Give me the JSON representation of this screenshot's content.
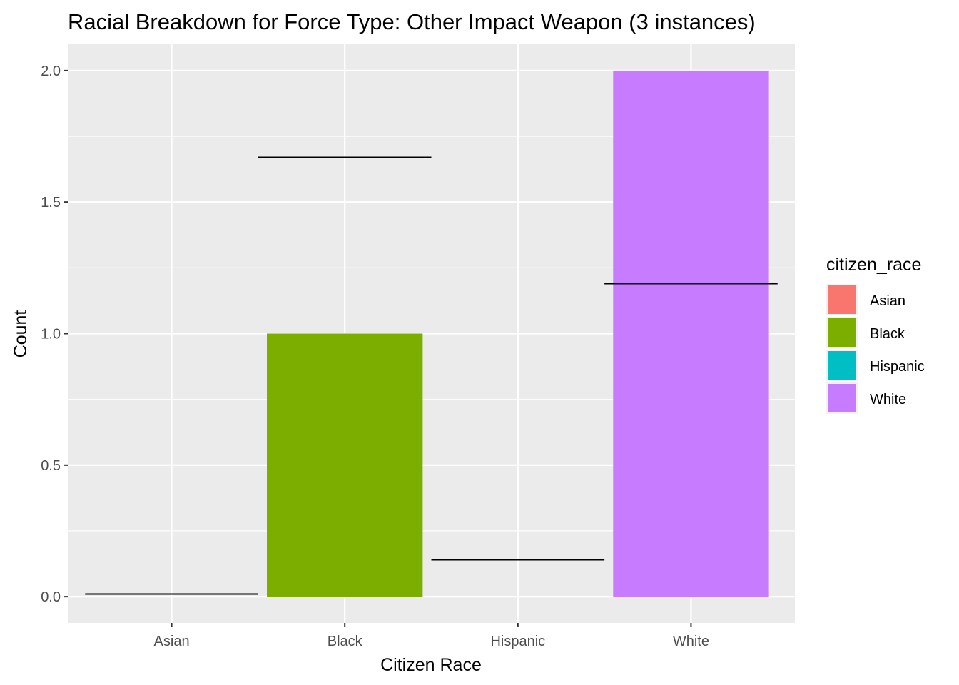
{
  "chart_data": {
    "type": "bar",
    "title": "Racial Breakdown for Force Type: Other Impact Weapon (3 instances)",
    "xlabel": "Citizen Race",
    "ylabel": "Count",
    "categories": [
      "Asian",
      "Black",
      "Hispanic",
      "White"
    ],
    "values": [
      0,
      1,
      0,
      2
    ],
    "colors": [
      "#F8766D",
      "#7CAE00",
      "#00BFC4",
      "#C77CFF"
    ],
    "reference_lines": [
      0.01,
      1.67,
      0.14,
      1.19
    ],
    "ylim": [
      -0.1,
      2.1
    ],
    "yticks": [
      0.0,
      0.5,
      1.0,
      1.5,
      2.0
    ],
    "ytick_labels": [
      "0.0",
      "0.5",
      "1.0",
      "1.5",
      "2.0"
    ],
    "grid": true,
    "panel_background": "#EBEBEB",
    "legend": {
      "title": "citizen_race",
      "position": "right",
      "items": [
        "Asian",
        "Black",
        "Hispanic",
        "White"
      ]
    }
  }
}
